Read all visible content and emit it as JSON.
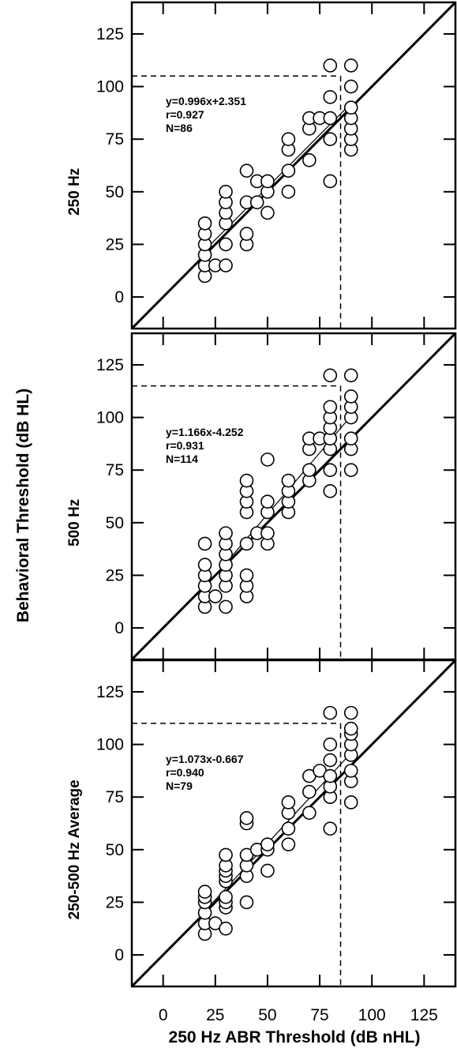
{
  "figure": {
    "y_axis_label": "Behavioral Threshold (dB HL)",
    "x_axis_label": "250 Hz ABR Threshold (dB nHL)"
  },
  "chart_data": [
    {
      "type": "scatter",
      "ylabel": "250 Hz",
      "xlim": [
        -15,
        140
      ],
      "ylim": [
        -15,
        140
      ],
      "ticks": [
        0,
        25,
        50,
        75,
        100,
        125
      ],
      "annotations": [
        "y=0.996x+2.351",
        "r=0.927",
        "N=86"
      ],
      "reference_lines": {
        "identity": "y=x",
        "regression": {
          "slope": 0.996,
          "intercept": 2.351
        },
        "criterion_x": 85,
        "criterion_y": 105
      },
      "points": [
        [
          20,
          10
        ],
        [
          20,
          15
        ],
        [
          20,
          20
        ],
        [
          20,
          25
        ],
        [
          20,
          30
        ],
        [
          20,
          35
        ],
        [
          25,
          15
        ],
        [
          30,
          15
        ],
        [
          30,
          25
        ],
        [
          30,
          35
        ],
        [
          30,
          40
        ],
        [
          30,
          45
        ],
        [
          30,
          50
        ],
        [
          40,
          25
        ],
        [
          40,
          30
        ],
        [
          40,
          45
        ],
        [
          40,
          60
        ],
        [
          45,
          45
        ],
        [
          45,
          55
        ],
        [
          50,
          40
        ],
        [
          50,
          50
        ],
        [
          50,
          55
        ],
        [
          60,
          50
        ],
        [
          60,
          60
        ],
        [
          60,
          70
        ],
        [
          60,
          75
        ],
        [
          70,
          65
        ],
        [
          70,
          80
        ],
        [
          70,
          85
        ],
        [
          75,
          85
        ],
        [
          80,
          55
        ],
        [
          80,
          75
        ],
        [
          80,
          85
        ],
        [
          80,
          95
        ],
        [
          80,
          110
        ],
        [
          90,
          70
        ],
        [
          90,
          75
        ],
        [
          90,
          80
        ],
        [
          90,
          85
        ],
        [
          90,
          90
        ],
        [
          90,
          100
        ],
        [
          90,
          110
        ]
      ]
    },
    {
      "type": "scatter",
      "ylabel": "500 Hz",
      "xlim": [
        -15,
        140
      ],
      "ylim": [
        -15,
        140
      ],
      "ticks": [
        0,
        25,
        50,
        75,
        100,
        125
      ],
      "annotations": [
        "y=1.166x-4.252",
        "r=0.931",
        "N=114"
      ],
      "reference_lines": {
        "identity": "y=x",
        "regression": {
          "slope": 1.166,
          "intercept": -4.252
        },
        "criterion_x": 85,
        "criterion_y": 115
      },
      "points": [
        [
          20,
          10
        ],
        [
          20,
          15
        ],
        [
          20,
          20
        ],
        [
          20,
          25
        ],
        [
          20,
          30
        ],
        [
          20,
          40
        ],
        [
          25,
          15
        ],
        [
          30,
          10
        ],
        [
          30,
          20
        ],
        [
          30,
          25
        ],
        [
          30,
          30
        ],
        [
          30,
          35
        ],
        [
          30,
          40
        ],
        [
          30,
          45
        ],
        [
          40,
          15
        ],
        [
          40,
          20
        ],
        [
          40,
          25
        ],
        [
          40,
          40
        ],
        [
          40,
          55
        ],
        [
          40,
          60
        ],
        [
          40,
          65
        ],
        [
          40,
          70
        ],
        [
          45,
          45
        ],
        [
          50,
          40
        ],
        [
          50,
          45
        ],
        [
          50,
          55
        ],
        [
          50,
          60
        ],
        [
          50,
          80
        ],
        [
          60,
          55
        ],
        [
          60,
          60
        ],
        [
          60,
          65
        ],
        [
          60,
          70
        ],
        [
          70,
          70
        ],
        [
          70,
          75
        ],
        [
          70,
          85
        ],
        [
          70,
          90
        ],
        [
          75,
          90
        ],
        [
          80,
          65
        ],
        [
          80,
          75
        ],
        [
          80,
          85
        ],
        [
          80,
          90
        ],
        [
          80,
          95
        ],
        [
          80,
          100
        ],
        [
          80,
          105
        ],
        [
          80,
          120
        ],
        [
          90,
          75
        ],
        [
          90,
          85
        ],
        [
          90,
          90
        ],
        [
          90,
          100
        ],
        [
          90,
          105
        ],
        [
          90,
          110
        ],
        [
          90,
          120
        ]
      ]
    },
    {
      "type": "scatter",
      "ylabel": "250-500 Hz Average",
      "xlim": [
        -15,
        140
      ],
      "ylim": [
        -15,
        140
      ],
      "ticks": [
        0,
        25,
        50,
        75,
        100,
        125
      ],
      "annotations": [
        "y=1.073x-0.667",
        "r=0.940",
        "N=79"
      ],
      "reference_lines": {
        "identity": "y=x",
        "regression": {
          "slope": 1.073,
          "intercept": -0.667
        },
        "criterion_x": 85,
        "criterion_y": 110
      },
      "points": [
        [
          20,
          10
        ],
        [
          20,
          15
        ],
        [
          20,
          20
        ],
        [
          20,
          25
        ],
        [
          20,
          27.5
        ],
        [
          20,
          30
        ],
        [
          25,
          15
        ],
        [
          30,
          12.5
        ],
        [
          30,
          22.5
        ],
        [
          30,
          25
        ],
        [
          30,
          27.5
        ],
        [
          30,
          35
        ],
        [
          30,
          37.5
        ],
        [
          30,
          40
        ],
        [
          30,
          42.5
        ],
        [
          30,
          47.5
        ],
        [
          40,
          25
        ],
        [
          40,
          37.5
        ],
        [
          40,
          42.5
        ],
        [
          40,
          47.5
        ],
        [
          40,
          62.5
        ],
        [
          40,
          65
        ],
        [
          45,
          50
        ],
        [
          50,
          40
        ],
        [
          50,
          50
        ],
        [
          50,
          52.5
        ],
        [
          60,
          52.5
        ],
        [
          60,
          60
        ],
        [
          60,
          67.5
        ],
        [
          60,
          72.5
        ],
        [
          70,
          67.5
        ],
        [
          70,
          77.5
        ],
        [
          70,
          85
        ],
        [
          75,
          87.5
        ],
        [
          80,
          60
        ],
        [
          80,
          75
        ],
        [
          80,
          80
        ],
        [
          80,
          85
        ],
        [
          80,
          92.5
        ],
        [
          80,
          100
        ],
        [
          80,
          115
        ],
        [
          90,
          72.5
        ],
        [
          90,
          82.5
        ],
        [
          90,
          87.5
        ],
        [
          90,
          95
        ],
        [
          90,
          100
        ],
        [
          90,
          105
        ],
        [
          90,
          107.5
        ],
        [
          90,
          115
        ]
      ]
    }
  ]
}
